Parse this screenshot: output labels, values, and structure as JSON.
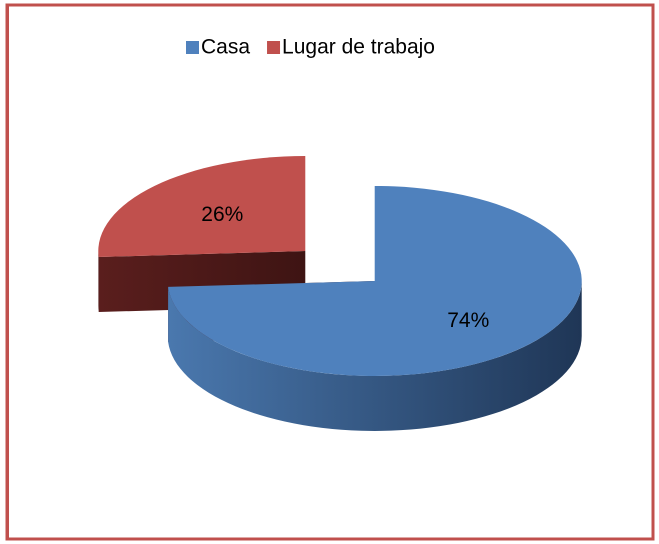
{
  "chart_data": {
    "type": "pie",
    "categories": [
      "Casa",
      "Lugar de trabajo"
    ],
    "values": [
      74,
      26
    ],
    "value_labels": [
      "74%",
      "26%"
    ],
    "colors": [
      "#4f81bd",
      "#c0504d"
    ],
    "legend": "top"
  }
}
